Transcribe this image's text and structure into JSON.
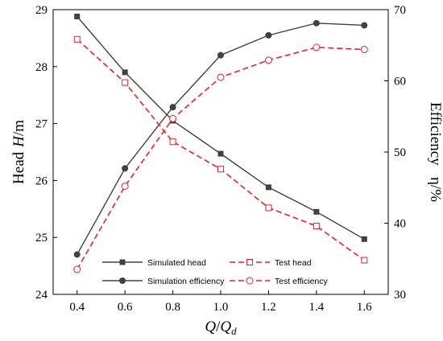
{
  "chart_data": {
    "type": "line",
    "x": [
      0.4,
      0.6,
      0.8,
      1.0,
      1.2,
      1.4,
      1.6
    ],
    "xlim": [
      0.3,
      1.7
    ],
    "xticks": [
      0.4,
      0.6,
      0.8,
      1.0,
      1.2,
      1.4,
      1.6
    ],
    "xtick_labels": [
      "0.4",
      "0.6",
      "0.8",
      "1.0",
      "1.2",
      "1.4",
      "1.6"
    ],
    "xlabel": {
      "q": "Q",
      "slash": "/",
      "q2": "Q",
      "sub": "d"
    },
    "left_axis": {
      "label_text": "Head",
      "label_italic": "H",
      "label_unit": "/m",
      "ylim": [
        24,
        29
      ],
      "ticks": [
        24,
        25,
        26,
        27,
        28,
        29
      ],
      "tick_labels": [
        "24",
        "25",
        "26",
        "27",
        "28",
        "29"
      ]
    },
    "right_axis": {
      "label": "Efficiency   η/%",
      "ylim": [
        30,
        70
      ],
      "ticks": [
        30,
        40,
        50,
        60,
        70
      ],
      "tick_labels": [
        "30",
        "40",
        "50",
        "60",
        "70"
      ]
    },
    "series": [
      {
        "name": "Simulated head",
        "axis": "left",
        "color": "#404040",
        "style": "solid",
        "marker": "square-filled",
        "values": [
          28.88,
          27.9,
          27.05,
          26.47,
          25.88,
          25.45,
          24.97
        ]
      },
      {
        "name": "Simulation efficiency",
        "axis": "right",
        "color": "#404040",
        "style": "solid",
        "marker": "circle-filled",
        "values": [
          35.6,
          47.7,
          56.3,
          63.6,
          66.4,
          68.1,
          67.8
        ]
      },
      {
        "name": "Test head",
        "axis": "left",
        "color": "#e8202a",
        "style": "dashed",
        "marker": "square-open",
        "values": [
          28.48,
          27.72,
          26.68,
          26.2,
          25.52,
          25.2,
          24.6
        ]
      },
      {
        "name": "Test efficiency",
        "axis": "right",
        "color": "#e8202a",
        "style": "dashed",
        "marker": "circle-open",
        "values": [
          33.5,
          45.2,
          54.7,
          60.5,
          62.9,
          64.7,
          64.4
        ]
      }
    ],
    "legend": {
      "placement": "bottom-center",
      "items": [
        "Simulated head",
        "Test head",
        "Simulation efficiency",
        "Test efficiency"
      ]
    }
  }
}
